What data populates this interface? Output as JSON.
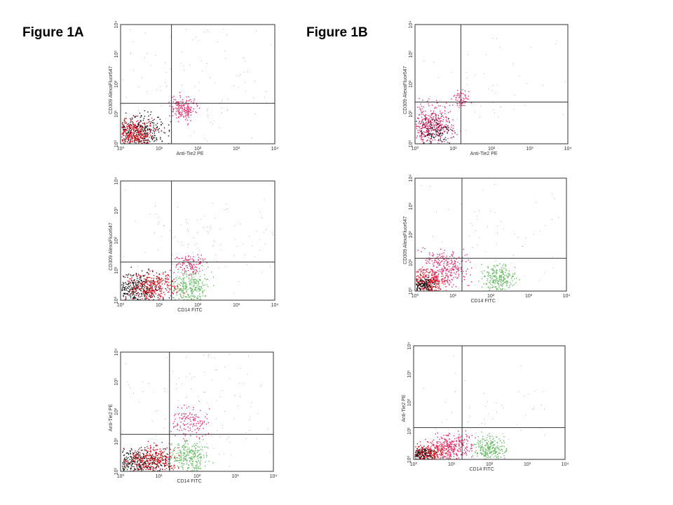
{
  "figures": [
    {
      "label": "Figure 1A",
      "panels": [
        {
          "x_label": "Anti-Tie2 PE",
          "y_label": "CD309 AlexaFluor647"
        },
        {
          "x_label": "CD14 FITC",
          "y_label": "CD309 AlexaFluor647"
        },
        {
          "x_label": "CD14 FITC",
          "y_label": "Anti-Tie2 PE"
        }
      ]
    },
    {
      "label": "Figure 1B",
      "panels": [
        {
          "x_label": "Anti-Tie2 PE",
          "y_label": "CD309 AlexaFluor647"
        },
        {
          "x_label": "CD14 FITC",
          "y_label": "CD309 AlexaFluor647"
        },
        {
          "x_label": "CD14 FITC",
          "y_label": "Anti-Tie2 PE"
        }
      ]
    }
  ],
  "axis_ticks": [
    "10⁰",
    "10¹",
    "10²",
    "10³",
    "10⁴"
  ]
}
